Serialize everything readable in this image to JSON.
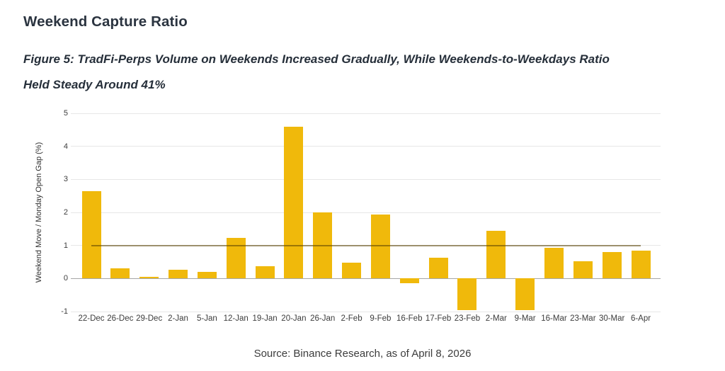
{
  "page": {
    "title": "Weekend Capture Ratio",
    "caption": {
      "line1": "Figure 5: TradFi-Perps Volume on Weekends Increased Gradually, While Weekends-to-Weekdays Ratio",
      "line2": "Held Steady Around 41%"
    },
    "source": "Source: Binance Research, as of April 8, 2026"
  },
  "colors": {
    "bar": "#F0B90B",
    "reference_line": "rgba(88,64,0,0.55)",
    "grid": "#e7e7e7",
    "zero_axis": "#a6a6a6"
  },
  "chart_data": {
    "type": "bar",
    "title": "Weekend Capture Ratio",
    "xlabel": "",
    "ylabel": "Weekend Move / Monday Open Gap (%)",
    "ylim": [
      -1,
      5
    ],
    "yticks": [
      -1,
      0,
      1,
      2,
      3,
      4,
      5
    ],
    "grid": true,
    "legend_position": "none",
    "categories": [
      "22-Dec",
      "26-Dec",
      "29-Dec",
      "2-Jan",
      "5-Jan",
      "12-Jan",
      "19-Jan",
      "20-Jan",
      "26-Jan",
      "2-Feb",
      "9-Feb",
      "16-Feb",
      "17-Feb",
      "23-Feb",
      "2-Mar",
      "9-Mar",
      "16-Mar",
      "23-Mar",
      "30-Mar",
      "6-Apr"
    ],
    "series": [
      {
        "name": "Weekend Move / Monday Open Gap (%)",
        "type": "bar",
        "color": "#F0B90B",
        "values": [
          2.65,
          0.3,
          0.04,
          0.26,
          0.2,
          1.22,
          0.37,
          4.6,
          2.0,
          0.48,
          1.94,
          -0.15,
          0.62,
          -0.95,
          1.44,
          -0.95,
          0.92,
          0.52,
          0.8,
          0.84
        ]
      },
      {
        "name": "Reference level",
        "type": "line",
        "color": "rgba(88,64,0,0.55)",
        "constant_value": 1.0
      }
    ]
  }
}
